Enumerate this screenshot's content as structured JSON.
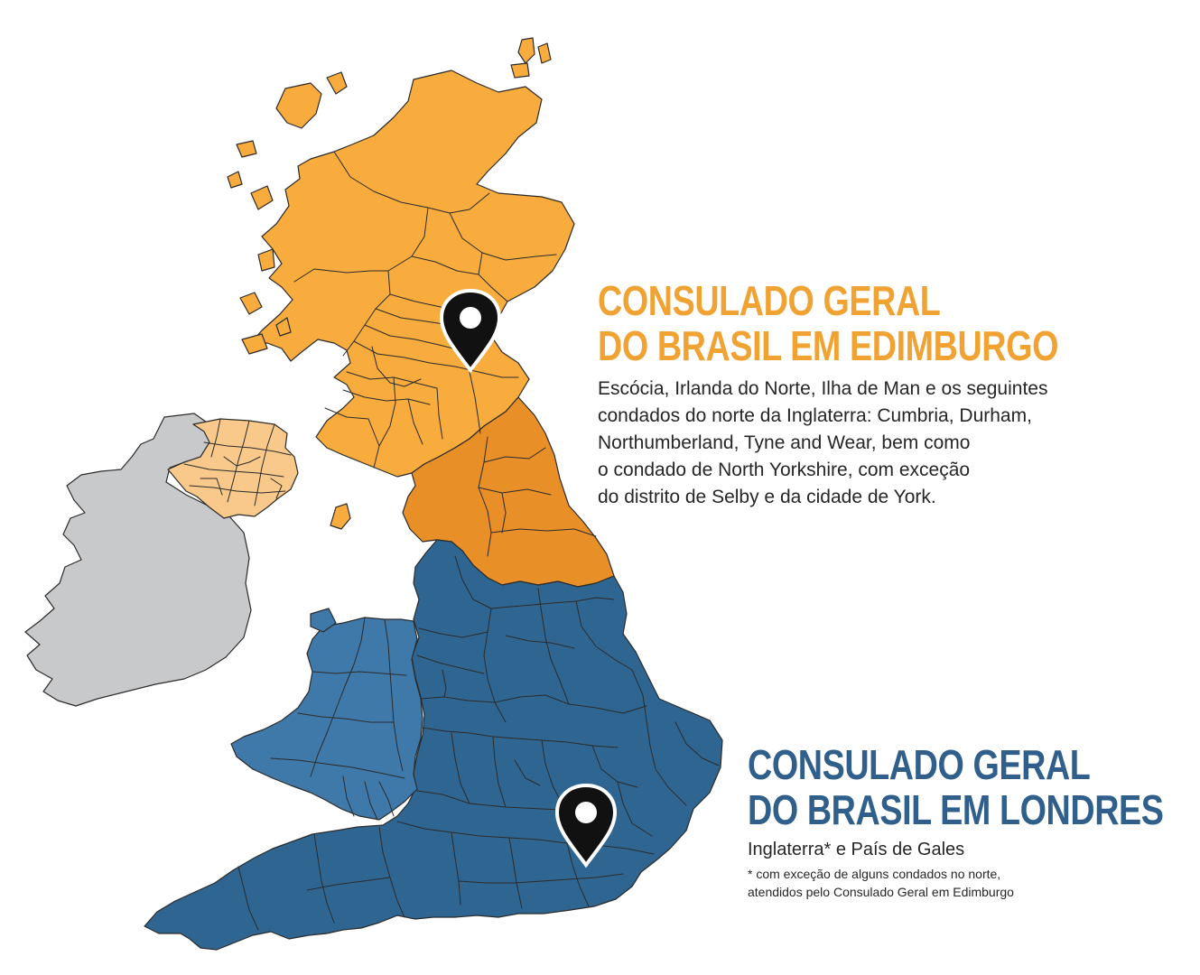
{
  "colors": {
    "scotland": "#f7ac3d",
    "northern_england": "#e88f27",
    "northern_ireland": "#f8c98a",
    "england": "#2f6591",
    "wales": "#3f79aa",
    "ireland": "#c8c9cb",
    "marker": "#111111"
  },
  "edinburgh": {
    "title_line1": "CONSULADO GERAL",
    "title_line2": "DO BRASIL EM EDIMBURGO",
    "coverage_lines": [
      "Escócia, Irlanda do Norte, Ilha de Man e os seguintes",
      "condados do norte da Inglaterra: Cumbria, Durham,",
      "Northumberland, Tyne and Wear, bem como",
      "o condado de North Yorkshire, com exceção",
      "do distrito de Selby e da cidade de York."
    ],
    "marker_icon": "map-pin-icon"
  },
  "london": {
    "title_line1": "CONSULADO GERAL",
    "title_line2": "DO BRASIL EM LONDRES",
    "coverage": "Inglaterra* e País de Gales",
    "footnote_lines": [
      "* com exceção de alguns condados no norte,",
      "atendidos pelo Consulado Geral em Edimburgo"
    ],
    "marker_icon": "map-pin-icon"
  }
}
